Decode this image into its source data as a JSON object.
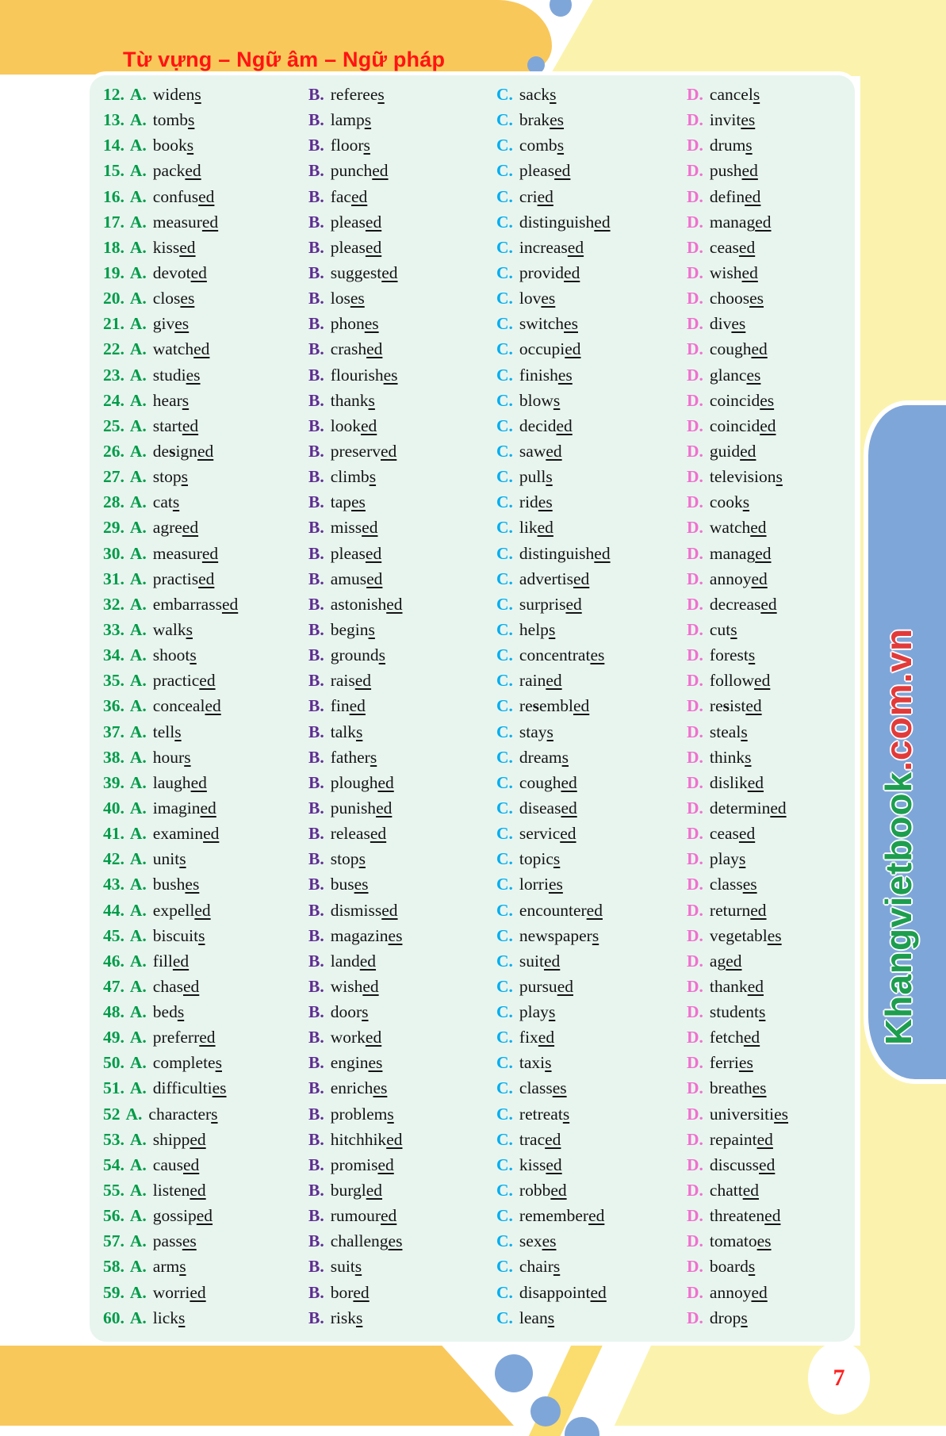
{
  "header": {
    "title": "Từ vựng – Ngữ âm – Ngữ pháp"
  },
  "brand": {
    "green_part": "Khangvietbook",
    "red_part": ".com.vn"
  },
  "page_number": "7",
  "colors": {
    "header_band": "#F9C85B",
    "pale_yellow": "#FBF3AD",
    "panel_mint": "#E8F5EF",
    "accent_blue": "#7FA6D9",
    "num_green": "#009B48",
    "label_b_purple": "#5E2D91",
    "label_c_cyan": "#00AEEF",
    "label_d_pink": "#F070CE",
    "header_text_red": "#FF1313",
    "brand_green": "#1D9E4F",
    "brand_red": "#E23A3A"
  },
  "option_labels": [
    "A.",
    "B.",
    "C.",
    "D."
  ],
  "questions": [
    {
      "num": "12.",
      "options": [
        {
          "w": "widens",
          "u": "s"
        },
        {
          "w": "referees",
          "u": "s"
        },
        {
          "w": "sacks",
          "u": "s"
        },
        {
          "w": "cancels",
          "u": "s"
        }
      ]
    },
    {
      "num": "13.",
      "options": [
        {
          "w": "tombs",
          "u": "s"
        },
        {
          "w": "lamps",
          "u": "s"
        },
        {
          "w": "brakes",
          "u": "es"
        },
        {
          "w": "invites",
          "u": "es"
        }
      ]
    },
    {
      "num": "14.",
      "options": [
        {
          "w": "books",
          "u": "s"
        },
        {
          "w": "floors",
          "u": "s"
        },
        {
          "w": "combs",
          "u": "s"
        },
        {
          "w": "drums",
          "u": "s"
        }
      ]
    },
    {
      "num": "15.",
      "options": [
        {
          "w": "packed",
          "u": "ed"
        },
        {
          "w": "punched",
          "u": "ed"
        },
        {
          "w": "pleased",
          "u": "ed"
        },
        {
          "w": "pushed",
          "u": "ed"
        }
      ]
    },
    {
      "num": "16.",
      "options": [
        {
          "w": "confused",
          "u": "ed"
        },
        {
          "w": "faced",
          "u": "ed"
        },
        {
          "w": "cried",
          "u": "ed"
        },
        {
          "w": "defined",
          "u": "ed"
        }
      ]
    },
    {
      "num": "17.",
      "options": [
        {
          "w": "measured",
          "u": "ed"
        },
        {
          "w": "pleased",
          "u": "ed"
        },
        {
          "w": "distinguished",
          "u": "ed"
        },
        {
          "w": "managed",
          "u": "ed"
        }
      ]
    },
    {
      "num": "18.",
      "options": [
        {
          "w": "kissed",
          "u": "ed"
        },
        {
          "w": "pleased",
          "u": "ed"
        },
        {
          "w": "increased",
          "u": "ed"
        },
        {
          "w": "ceased",
          "u": "ed"
        }
      ]
    },
    {
      "num": "19.",
      "options": [
        {
          "w": "devoted",
          "u": "ed"
        },
        {
          "w": "suggested",
          "u": "ed"
        },
        {
          "w": "provided",
          "u": "ed"
        },
        {
          "w": "wished",
          "u": "ed"
        }
      ]
    },
    {
      "num": "20.",
      "options": [
        {
          "w": "closes",
          "u": "es"
        },
        {
          "w": "loses",
          "u": "es"
        },
        {
          "w": "loves",
          "u": "es"
        },
        {
          "w": "chooses",
          "u": "es"
        }
      ]
    },
    {
      "num": "21.",
      "options": [
        {
          "w": "gives",
          "u": "es"
        },
        {
          "w": "phones",
          "u": "es"
        },
        {
          "w": "switches",
          "u": "es"
        },
        {
          "w": "dives",
          "u": "es"
        }
      ]
    },
    {
      "num": "22.",
      "options": [
        {
          "w": "watched",
          "u": "ed"
        },
        {
          "w": "crashed",
          "u": "ed"
        },
        {
          "w": "occupied",
          "u": "ed"
        },
        {
          "w": "coughed",
          "u": "ed"
        }
      ]
    },
    {
      "num": "23.",
      "options": [
        {
          "w": "studies",
          "u": "es"
        },
        {
          "w": "flourishes",
          "u": "es"
        },
        {
          "w": "finishes",
          "u": "es"
        },
        {
          "w": "glances",
          "u": "es"
        }
      ]
    },
    {
      "num": "24.",
      "options": [
        {
          "w": "hears",
          "u": "s"
        },
        {
          "w": "thanks",
          "u": "s"
        },
        {
          "w": "blows",
          "u": "s"
        },
        {
          "w": "coincides",
          "u": "es"
        }
      ]
    },
    {
      "num": "25.",
      "options": [
        {
          "w": "started",
          "u": "ed"
        },
        {
          "w": "looked",
          "u": "ed"
        },
        {
          "w": "decided",
          "u": "ed"
        },
        {
          "w": "coincided",
          "u": "ed"
        }
      ]
    },
    {
      "num": "26.",
      "options": [
        {
          "w": "de*s*igned",
          "u": "ed"
        },
        {
          "w": "preserved",
          "u": "ed"
        },
        {
          "w": "sawed",
          "u": "ed"
        },
        {
          "w": "guided",
          "u": "ed"
        }
      ]
    },
    {
      "num": "27.",
      "options": [
        {
          "w": "stops",
          "u": "s"
        },
        {
          "w": "climbs",
          "u": "s"
        },
        {
          "w": "pulls",
          "u": "s"
        },
        {
          "w": "televisions",
          "u": "s"
        }
      ]
    },
    {
      "num": "28.",
      "options": [
        {
          "w": "cats",
          "u": "s"
        },
        {
          "w": "tapes",
          "u": "es"
        },
        {
          "w": "rides",
          "u": "es"
        },
        {
          "w": "cooks",
          "u": "s"
        }
      ]
    },
    {
      "num": "29.",
      "options": [
        {
          "w": "agreed",
          "u": "ed"
        },
        {
          "w": "missed",
          "u": "ed"
        },
        {
          "w": "liked",
          "u": "ed"
        },
        {
          "w": "watched",
          "u": "ed"
        }
      ]
    },
    {
      "num": "30.",
      "options": [
        {
          "w": "measured",
          "u": "ed"
        },
        {
          "w": "pleased",
          "u": "ed"
        },
        {
          "w": "distinguished",
          "u": "ed"
        },
        {
          "w": "managed",
          "u": "ed"
        }
      ]
    },
    {
      "num": "31.",
      "options": [
        {
          "w": "practised",
          "u": "ed"
        },
        {
          "w": "amused",
          "u": "ed"
        },
        {
          "w": "advertised",
          "u": "ed"
        },
        {
          "w": "annoyed",
          "u": "ed"
        }
      ]
    },
    {
      "num": "32.",
      "options": [
        {
          "w": "embarrassed",
          "u": "ed"
        },
        {
          "w": "astonished",
          "u": "ed"
        },
        {
          "w": "surprised",
          "u": "ed"
        },
        {
          "w": "decreased",
          "u": "ed"
        }
      ]
    },
    {
      "num": "33.",
      "options": [
        {
          "w": "walks",
          "u": "s"
        },
        {
          "w": "begins",
          "u": "s"
        },
        {
          "w": "helps",
          "u": "s"
        },
        {
          "w": "cuts",
          "u": "s"
        }
      ]
    },
    {
      "num": "34.",
      "options": [
        {
          "w": "shoots",
          "u": "s"
        },
        {
          "w": "grounds",
          "u": "s"
        },
        {
          "w": "concentrates",
          "u": "es"
        },
        {
          "w": "forests",
          "u": "s"
        }
      ]
    },
    {
      "num": "35.",
      "options": [
        {
          "w": "practiced",
          "u": "ed"
        },
        {
          "w": "raised",
          "u": "ed"
        },
        {
          "w": "rained",
          "u": "ed"
        },
        {
          "w": "followed",
          "u": "ed"
        }
      ]
    },
    {
      "num": "36.",
      "options": [
        {
          "w": "concealed",
          "u": "ed"
        },
        {
          "w": "fined",
          "u": "ed"
        },
        {
          "w": "re*s*embled",
          "u": "ed"
        },
        {
          "w": "re*s*isted",
          "u": "ed"
        }
      ]
    },
    {
      "num": "37.",
      "options": [
        {
          "w": "tells",
          "u": "s"
        },
        {
          "w": "talks",
          "u": "s"
        },
        {
          "w": "stays",
          "u": "s"
        },
        {
          "w": "steals",
          "u": "s"
        }
      ]
    },
    {
      "num": "38.",
      "options": [
        {
          "w": "hours",
          "u": "s"
        },
        {
          "w": "fathers",
          "u": "s"
        },
        {
          "w": "dreams",
          "u": "s"
        },
        {
          "w": "thinks",
          "u": "s"
        }
      ]
    },
    {
      "num": "39.",
      "options": [
        {
          "w": "laughed",
          "u": "ed"
        },
        {
          "w": "ploughed",
          "u": "ed"
        },
        {
          "w": "coughed",
          "u": "ed"
        },
        {
          "w": "disliked",
          "u": "ed"
        }
      ]
    },
    {
      "num": "40.",
      "options": [
        {
          "w": "imagined",
          "u": "ed"
        },
        {
          "w": "punished",
          "u": "ed"
        },
        {
          "w": "diseased",
          "u": "ed"
        },
        {
          "w": "determined",
          "u": "ed"
        }
      ]
    },
    {
      "num": "41.",
      "options": [
        {
          "w": "examined",
          "u": "ed"
        },
        {
          "w": "released",
          "u": "ed"
        },
        {
          "w": "serviced",
          "u": "ed"
        },
        {
          "w": "ceased",
          "u": "ed"
        }
      ]
    },
    {
      "num": "42.",
      "options": [
        {
          "w": "units",
          "u": "s"
        },
        {
          "w": "stops",
          "u": "s"
        },
        {
          "w": "topics",
          "u": "s"
        },
        {
          "w": "plays",
          "u": "s"
        }
      ]
    },
    {
      "num": "43.",
      "options": [
        {
          "w": "bushes",
          "u": "es"
        },
        {
          "w": "buses",
          "u": "es"
        },
        {
          "w": "lorries",
          "u": "es"
        },
        {
          "w": "classes",
          "u": "es"
        }
      ]
    },
    {
      "num": "44.",
      "options": [
        {
          "w": "expelled",
          "u": "ed"
        },
        {
          "w": "dismissed",
          "u": "ed"
        },
        {
          "w": "encountered",
          "u": "ed"
        },
        {
          "w": "returned",
          "u": "ed"
        }
      ]
    },
    {
      "num": "45.",
      "options": [
        {
          "w": "biscuits",
          "u": "s"
        },
        {
          "w": "magazines",
          "u": "es"
        },
        {
          "w": "newspapers",
          "u": "s"
        },
        {
          "w": "vegetables",
          "u": "es"
        }
      ]
    },
    {
      "num": "46.",
      "options": [
        {
          "w": "filled",
          "u": "ed"
        },
        {
          "w": "landed",
          "u": "ed"
        },
        {
          "w": "suited",
          "u": "ed"
        },
        {
          "w": "aged",
          "u": "ed"
        }
      ]
    },
    {
      "num": "47.",
      "options": [
        {
          "w": "chased",
          "u": "ed"
        },
        {
          "w": "wished",
          "u": "ed"
        },
        {
          "w": "pursued",
          "u": "ed"
        },
        {
          "w": "thanked",
          "u": "ed"
        }
      ]
    },
    {
      "num": "48.",
      "options": [
        {
          "w": "beds",
          "u": "s"
        },
        {
          "w": "doors",
          "u": "s"
        },
        {
          "w": "plays",
          "u": "s"
        },
        {
          "w": "students",
          "u": "s"
        }
      ]
    },
    {
      "num": "49.",
      "options": [
        {
          "w": "preferred",
          "u": "ed"
        },
        {
          "w": "worked",
          "u": "ed"
        },
        {
          "w": "fixed",
          "u": "ed"
        },
        {
          "w": "fetched",
          "u": "ed"
        }
      ]
    },
    {
      "num": "50.",
      "options": [
        {
          "w": "completes",
          "u": "s"
        },
        {
          "w": "engines",
          "u": "es"
        },
        {
          "w": "taxis",
          "u": "s"
        },
        {
          "w": "ferries",
          "u": "es"
        }
      ]
    },
    {
      "num": "51.",
      "options": [
        {
          "w": "difficulties",
          "u": "es"
        },
        {
          "w": "enriches",
          "u": "es"
        },
        {
          "w": "classes",
          "u": "es"
        },
        {
          "w": "breathes",
          "u": "es"
        }
      ]
    },
    {
      "num": "52",
      "options": [
        {
          "w": "characters",
          "u": "s"
        },
        {
          "w": "problems",
          "u": "s"
        },
        {
          "w": "retreats",
          "u": "s"
        },
        {
          "w": "universities",
          "u": "es"
        }
      ]
    },
    {
      "num": "53.",
      "options": [
        {
          "w": "shipped",
          "u": "ed"
        },
        {
          "w": "hitchhiked",
          "u": "ed"
        },
        {
          "w": "traced",
          "u": "ed"
        },
        {
          "w": "repainted",
          "u": "ed"
        }
      ]
    },
    {
      "num": "54.",
      "options": [
        {
          "w": "caused",
          "u": "ed"
        },
        {
          "w": "promised",
          "u": "ed"
        },
        {
          "w": "kissed",
          "u": "ed"
        },
        {
          "w": "discussed",
          "u": "ed"
        }
      ]
    },
    {
      "num": "55.",
      "options": [
        {
          "w": "listened",
          "u": "ed"
        },
        {
          "w": "burgled",
          "u": "ed"
        },
        {
          "w": "robbed",
          "u": "ed"
        },
        {
          "w": "chatted",
          "u": "ed"
        }
      ]
    },
    {
      "num": "56.",
      "options": [
        {
          "w": "gossiped",
          "u": "ed"
        },
        {
          "w": "rumoured",
          "u": "ed"
        },
        {
          "w": "remembered",
          "u": "ed"
        },
        {
          "w": "threatened",
          "u": "ed"
        }
      ]
    },
    {
      "num": "57.",
      "options": [
        {
          "w": "passes",
          "u": "es"
        },
        {
          "w": "challenges",
          "u": "es"
        },
        {
          "w": "sexes",
          "u": "es"
        },
        {
          "w": "tomatoes",
          "u": "es"
        }
      ]
    },
    {
      "num": "58.",
      "options": [
        {
          "w": "arms",
          "u": "s"
        },
        {
          "w": "suits",
          "u": "s"
        },
        {
          "w": "chairs",
          "u": "s"
        },
        {
          "w": "boards",
          "u": "s"
        }
      ]
    },
    {
      "num": "59.",
      "options": [
        {
          "w": "worried",
          "u": "ed"
        },
        {
          "w": "bored",
          "u": "ed"
        },
        {
          "w": "disappointed",
          "u": "ed"
        },
        {
          "w": "annoyed",
          "u": "ed"
        }
      ]
    },
    {
      "num": "60.",
      "options": [
        {
          "w": "licks",
          "u": "s"
        },
        {
          "w": "risks",
          "u": "s"
        },
        {
          "w": "leans",
          "u": "s"
        },
        {
          "w": "drops",
          "u": "s"
        }
      ]
    }
  ]
}
